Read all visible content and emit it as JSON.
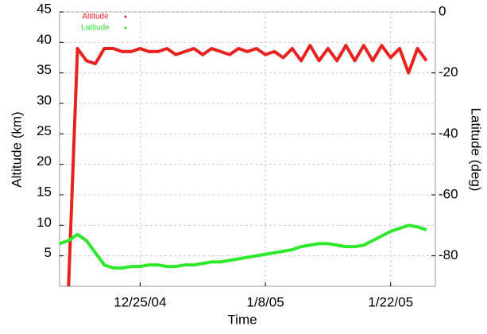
{
  "chart_data": {
    "type": "line",
    "xlabel": "Time",
    "ylabel": "Altitude (km)",
    "y2label": "Latitude (deg)",
    "x": [
      "2004-12-16",
      "2004-12-17",
      "2004-12-18",
      "2004-12-19",
      "2004-12-20",
      "2004-12-21",
      "2004-12-22",
      "2004-12-23",
      "2004-12-24",
      "2004-12-25",
      "2004-12-26",
      "2004-12-27",
      "2004-12-28",
      "2004-12-29",
      "2004-12-30",
      "2004-12-31",
      "2005-01-01",
      "2005-01-02",
      "2005-01-03",
      "2005-01-04",
      "2005-01-05",
      "2005-01-06",
      "2005-01-07",
      "2005-01-08",
      "2005-01-09",
      "2005-01-10",
      "2005-01-11",
      "2005-01-12",
      "2005-01-13",
      "2005-01-14",
      "2005-01-15",
      "2005-01-16",
      "2005-01-17",
      "2005-01-18",
      "2005-01-19",
      "2005-01-20",
      "2005-01-21",
      "2005-01-22",
      "2005-01-23",
      "2005-01-24",
      "2005-01-25",
      "2005-01-26"
    ],
    "series": [
      {
        "name": "Altitude",
        "color": "#e8231f",
        "axis": "y",
        "values": [
          null,
          0,
          39,
          37,
          36.5,
          39,
          39,
          38.5,
          38.5,
          39,
          38.5,
          38.5,
          39,
          38,
          38.5,
          39,
          38,
          39,
          38.5,
          38,
          39,
          38.5,
          39,
          38,
          38.5,
          37.5,
          39,
          37,
          39.5,
          37,
          39,
          37,
          39.5,
          37,
          39.5,
          37,
          39.5,
          37.5,
          39,
          35,
          39,
          37
        ]
      },
      {
        "name": "Latitude",
        "color": "#2ee82a",
        "axis": "y2",
        "values": [
          -76,
          -75,
          -73,
          -75,
          -79,
          -83,
          -84,
          -84,
          -83.5,
          -83.5,
          -83,
          -83,
          -83.5,
          -83.5,
          -83,
          -83,
          -82.5,
          -82,
          -82,
          -81.5,
          -81,
          -80.5,
          -80,
          -79.5,
          -79,
          -78.5,
          -78,
          -77,
          -76.5,
          -76,
          -76,
          -76.5,
          -77,
          -77,
          -76.5,
          -75,
          -73.5,
          -72,
          -71,
          -70,
          -70.5,
          -71.5
        ]
      }
    ],
    "xlim": [
      "2004-12-16",
      "2005-01-27"
    ],
    "xticks": [
      {
        "value": "2004-12-25",
        "label": "12/25/04"
      },
      {
        "value": "2005-01-08",
        "label": "1/8/05"
      },
      {
        "value": "2005-01-22",
        "label": "1/22/05"
      }
    ],
    "ylim": [
      0,
      45
    ],
    "yticks": [
      5,
      10,
      15,
      20,
      25,
      30,
      35,
      40,
      45
    ],
    "y2lim": [
      -90,
      0
    ],
    "y2ticks": [
      -80,
      -60,
      -40,
      -20,
      0
    ],
    "grid": true,
    "legend": "upper left"
  }
}
